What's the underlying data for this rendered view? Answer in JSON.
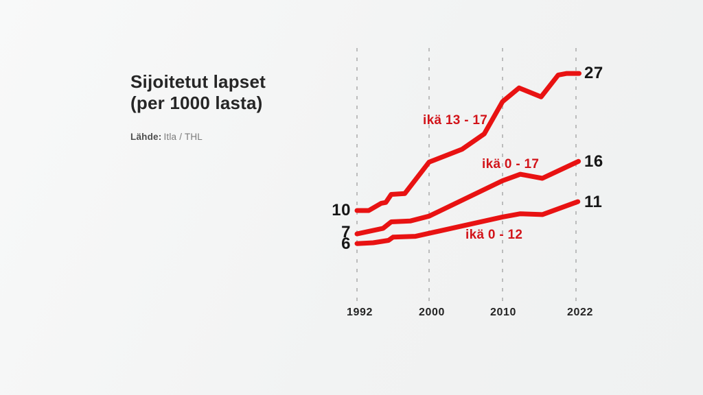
{
  "header": {
    "title_line1": "Sijoitetut lapset",
    "title_line2": "(per 1000 lasta)",
    "source_label": "Lähde:",
    "source_value": "Itla / THL"
  },
  "chart_data": {
    "type": "line",
    "title": "Sijoitetut lapset (per 1000 lasta)",
    "x_ticks": [
      "1992",
      "2000",
      "2010",
      "2022"
    ],
    "ylim": [
      0,
      30
    ],
    "grid": "vertical dashed lines at each x tick, equally spaced despite uneven year spans",
    "legend_position": "labels inline next to lines",
    "line_color": "#e81212",
    "label_color": "#d2141a",
    "grid_color": "#aeaeae",
    "value_text_color": "#161616",
    "series": [
      {
        "name": "ikä 13 - 17",
        "start_label": "10",
        "end_label": "27",
        "points": [
          [
            1992,
            10
          ],
          [
            1993.3,
            10
          ],
          [
            1994.7,
            10.9
          ],
          [
            1995.2,
            11
          ],
          [
            1995.8,
            12
          ],
          [
            1997.3,
            12.1
          ],
          [
            2000,
            16
          ],
          [
            2004.5,
            17.6
          ],
          [
            2007.5,
            19.5
          ],
          [
            2010,
            23.5
          ],
          [
            2012.7,
            25.2
          ],
          [
            2016.3,
            24.1
          ],
          [
            2019.1,
            26.8
          ],
          [
            2020.5,
            27
          ],
          [
            2022.5,
            27
          ]
        ]
      },
      {
        "name": "ikä 0 - 17",
        "start_label": "7",
        "end_label": "16",
        "points": [
          [
            1992,
            7.1
          ],
          [
            1994.9,
            7.8
          ],
          [
            1995.8,
            8.6
          ],
          [
            1997.9,
            8.7
          ],
          [
            2000,
            9.3
          ],
          [
            2010,
            13.7
          ],
          [
            2012.9,
            14.5
          ],
          [
            2016.5,
            14
          ],
          [
            2022.4,
            16.1
          ]
        ]
      },
      {
        "name": "ikä 0 - 12",
        "start_label": "6",
        "end_label": "11",
        "points": [
          [
            1992,
            5.9
          ],
          [
            1993.8,
            6
          ],
          [
            1995.5,
            6.3
          ],
          [
            1996,
            6.7
          ],
          [
            1998.5,
            6.8
          ],
          [
            2010,
            9.2
          ],
          [
            2012.9,
            9.6
          ],
          [
            2016.5,
            9.5
          ],
          [
            2022.3,
            11.1
          ]
        ]
      }
    ]
  }
}
